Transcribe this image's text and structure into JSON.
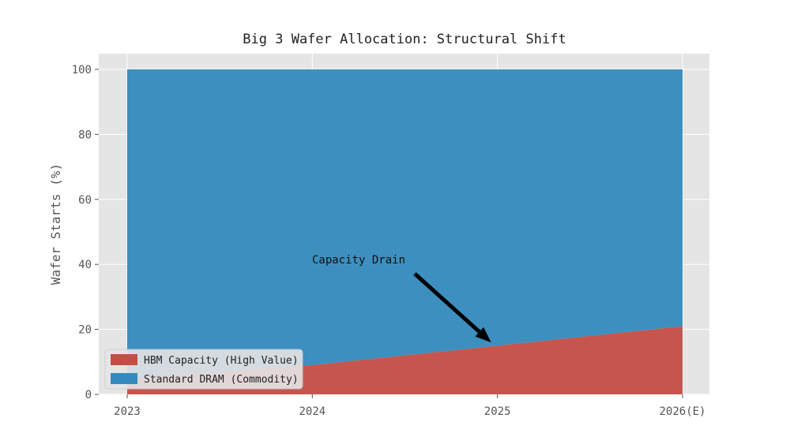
{
  "chart_data": {
    "type": "area",
    "title": "Big 3 Wafer Allocation: Structural Shift",
    "xlabel": "",
    "ylabel": "Wafer Starts (%)",
    "categories": [
      "2023",
      "2024",
      "2025",
      "2026(E)"
    ],
    "ylim": [
      0,
      100
    ],
    "yticks": [
      0,
      20,
      40,
      60,
      80,
      100
    ],
    "stacked": true,
    "series": [
      {
        "name": "HBM Capacity (High Value)",
        "values": [
          5,
          9,
          15,
          21
        ],
        "color": "#c44e44"
      },
      {
        "name": "Standard DRAM (Commodity)",
        "values": [
          95,
          91,
          85,
          79
        ],
        "color": "#348abd"
      }
    ],
    "annotation": {
      "text": "Capacity Drain",
      "target_x": "2025",
      "target_y": 16
    },
    "grid": true,
    "background": "#e5e5e5",
    "grid_color": "#ffffff",
    "legend_position": "lower-left"
  }
}
